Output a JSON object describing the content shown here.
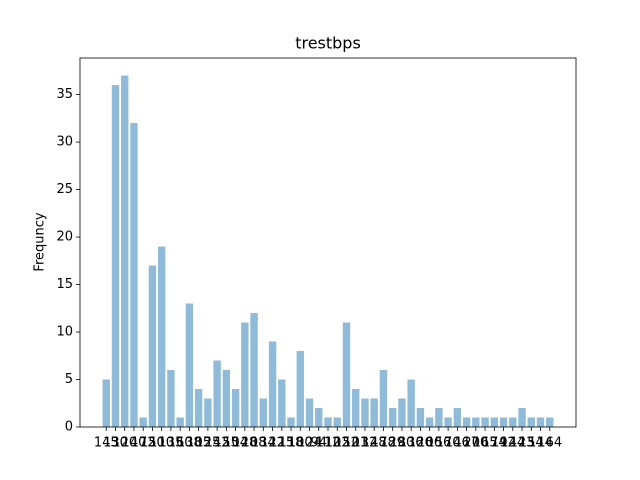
{
  "chart_data": {
    "type": "bar",
    "title": "trestbps",
    "ylabel": "Frequncy",
    "categories": [
      "145",
      "130",
      "120",
      "140",
      "172",
      "150",
      "110",
      "135",
      "160",
      "138",
      "105",
      "125",
      "142",
      "155",
      "104",
      "128",
      "108",
      "134",
      "122",
      "115",
      "118",
      "100",
      "124",
      "94",
      "112",
      "102",
      "152",
      "101",
      "132",
      "148",
      "178",
      "129",
      "180",
      "136",
      "126",
      "106",
      "156",
      "170",
      "146",
      "117",
      "200",
      "165",
      "174",
      "192",
      "144",
      "123",
      "154",
      "114",
      "164"
    ],
    "values": [
      5,
      36,
      37,
      32,
      1,
      17,
      19,
      6,
      1,
      13,
      4,
      3,
      7,
      6,
      4,
      11,
      12,
      3,
      9,
      5,
      1,
      8,
      3,
      2,
      1,
      1,
      11,
      4,
      3,
      3,
      6,
      2,
      3,
      5,
      2,
      1,
      2,
      1,
      2,
      1,
      1,
      1,
      1,
      1,
      1,
      2,
      1,
      1,
      1
    ],
    "color": "#8fbbd9",
    "ylim": [
      0,
      38.85
    ],
    "yticks": [
      0,
      5,
      10,
      15,
      20,
      25,
      30,
      35
    ],
    "grid": false
  }
}
